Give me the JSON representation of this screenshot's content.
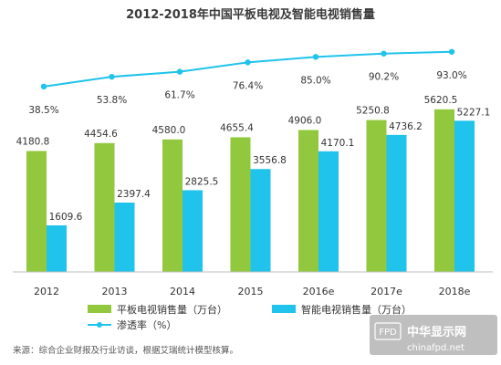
{
  "chart_data": {
    "type": "bar",
    "title": "2012-2018年中国平板电视及智能电视销售量",
    "categories": [
      "2012",
      "2013",
      "2014",
      "2015",
      "2016e",
      "2017e",
      "2018e"
    ],
    "series": [
      {
        "name": "平板电视销售量（万台）",
        "type": "bar",
        "color": "#92c83e",
        "values": [
          4180.8,
          4454.6,
          4580.0,
          4655.4,
          4906.0,
          5250.8,
          5620.5
        ]
      },
      {
        "name": "智能电视销售量（万台）",
        "type": "bar",
        "color": "#1fc3ec",
        "values": [
          1609.6,
          2397.4,
          2825.5,
          3556.8,
          4170.1,
          4736.2,
          5227.1
        ]
      },
      {
        "name": "渗透率（%）",
        "type": "line",
        "color": "#1fc3ec",
        "values": [
          38.5,
          53.8,
          61.7,
          76.4,
          85.0,
          90.2,
          93.0
        ],
        "labels": [
          "38.5%",
          "53.8%",
          "61.7%",
          "76.4%",
          "85.0%",
          "90.2%",
          "93.0%"
        ]
      }
    ],
    "legend_position": "bottom-left",
    "grid": false
  },
  "source": "来源：综合企业财报及行业访谈，根据艾瑞统计模型核算。",
  "watermark": {
    "badge": "FPD",
    "text": "中华显示网",
    "url": "chinafpd.net"
  }
}
